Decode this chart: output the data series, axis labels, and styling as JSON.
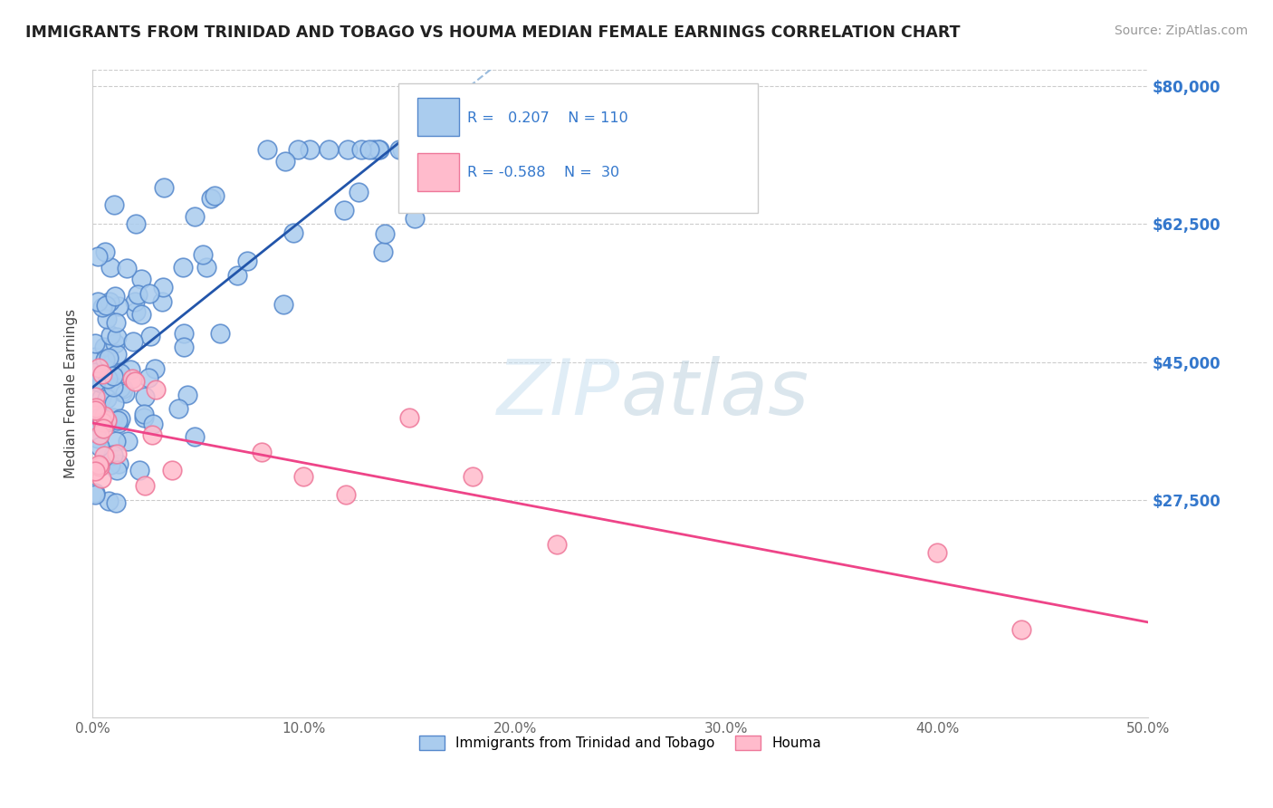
{
  "title": "IMMIGRANTS FROM TRINIDAD AND TOBAGO VS HOUMA MEDIAN FEMALE EARNINGS CORRELATION CHART",
  "source": "Source: ZipAtlas.com",
  "ylabel_label": "Median Female Earnings",
  "xlim": [
    0.0,
    0.5
  ],
  "ylim": [
    0,
    82000
  ],
  "xtick_labels": [
    "0.0%",
    "10.0%",
    "20.0%",
    "30.0%",
    "40.0%",
    "50.0%"
  ],
  "xtick_values": [
    0.0,
    0.1,
    0.2,
    0.3,
    0.4,
    0.5
  ],
  "ytick_values": [
    0,
    27500,
    45000,
    62500,
    80000
  ],
  "ytick_labels": [
    "",
    "$27,500",
    "$45,000",
    "$62,500",
    "$80,000"
  ],
  "grid_color": "#cccccc",
  "bg_color": "#ffffff",
  "legend_R1": "0.207",
  "legend_N1": "110",
  "legend_R2": "-0.588",
  "legend_N2": "30",
  "series1_color": "#aaccee",
  "series1_edge": "#5588cc",
  "series2_color": "#ffbbcc",
  "series2_edge": "#ee7799",
  "trend1_color": "#2255aa",
  "trend2_color": "#ee4488",
  "trend1_dashed_color": "#99bbdd",
  "title_color": "#222222",
  "axis_label_color": "#444444",
  "tick_label_color": "#666666",
  "right_tick_color": "#3377cc",
  "source_color": "#999999",
  "legend_text_color": "#3377cc"
}
